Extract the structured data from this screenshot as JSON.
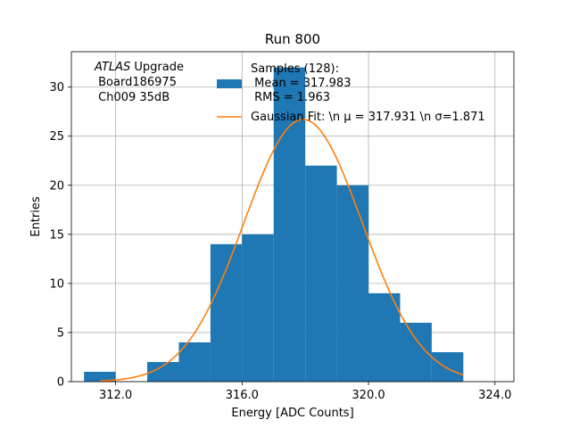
{
  "chart_data": {
    "type": "bar",
    "title": "Run 800",
    "xlabel": "Energy [ADC Counts]",
    "ylabel": "Entries",
    "xlim": [
      310.6,
      324.6
    ],
    "ylim": [
      0,
      33.6
    ],
    "x_ticks": [
      312,
      316,
      320,
      324
    ],
    "x_tick_labels": [
      "312.0",
      "316.0",
      "320.0",
      "324.0"
    ],
    "y_ticks": [
      0,
      5,
      10,
      15,
      20,
      25,
      30
    ],
    "y_tick_labels": [
      "0",
      "5",
      "10",
      "15",
      "20",
      "25",
      "30"
    ],
    "grid": true,
    "bins": [
      {
        "start": 311,
        "end": 312,
        "count": 1
      },
      {
        "start": 313,
        "end": 314,
        "count": 2
      },
      {
        "start": 314,
        "end": 315,
        "count": 4
      },
      {
        "start": 315,
        "end": 316,
        "count": 14
      },
      {
        "start": 316,
        "end": 317,
        "count": 15
      },
      {
        "start": 317,
        "end": 318,
        "count": 32
      },
      {
        "start": 318,
        "end": 319,
        "count": 22
      },
      {
        "start": 319,
        "end": 320,
        "count": 20
      },
      {
        "start": 320,
        "end": 321,
        "count": 9
      },
      {
        "start": 321,
        "end": 322,
        "count": 6
      },
      {
        "start": 322,
        "end": 323,
        "count": 3
      }
    ],
    "fit": {
      "mu": 317.931,
      "sigma": 1.871,
      "amplitude": 26.7,
      "x_range": [
        311.5,
        323.0
      ]
    },
    "annotation": {
      "line1_italic": "ATLAS",
      "line1_rest": " Upgrade",
      "line2": " Board186975",
      "line3": " Ch009 35dB"
    },
    "legend": {
      "placement": "top-right",
      "samples_line1": "Samples (128):",
      "samples_line2": " Mean = 317.983",
      "samples_line3": " RMS = 1.963",
      "fit_label": "Gaussian Fit: \\n μ = 317.931 \\n σ=1.871"
    },
    "colors": {
      "bar": "#1f77b4",
      "fit": "#ff7f0e",
      "grid": "#b0b0b0",
      "axis": "#000000"
    }
  }
}
